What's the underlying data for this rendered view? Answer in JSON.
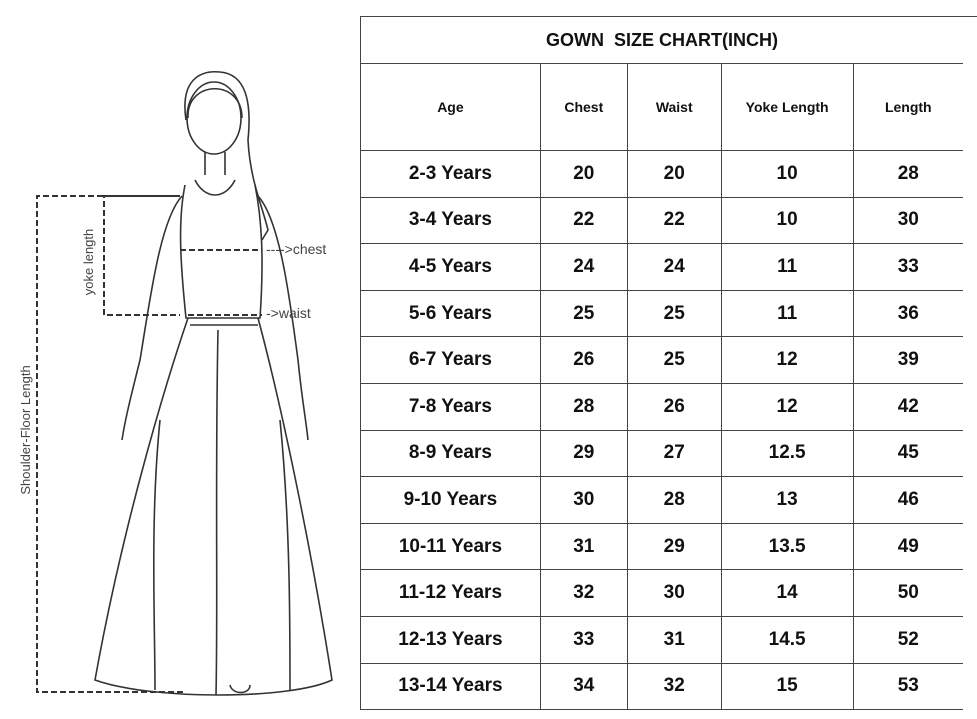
{
  "illustration": {
    "labels": {
      "chest": "---->chest",
      "waist": "->waist",
      "yoke": "yoke length",
      "shoulder_floor": "Shoulder-Floor Length"
    }
  },
  "table": {
    "title": "GOWN  SIZE CHART(INCH)",
    "header": [
      "Age",
      "Chest",
      "Waist",
      "Yoke Length",
      "Length"
    ],
    "rows": [
      [
        "2-3 Years",
        20,
        20,
        10,
        28
      ],
      [
        "3-4 Years",
        22,
        22,
        10,
        30
      ],
      [
        "4-5 Years",
        24,
        24,
        11,
        33
      ],
      [
        "5-6 Years",
        25,
        25,
        11,
        36
      ],
      [
        "6-7 Years",
        26,
        25,
        12,
        39
      ],
      [
        "7-8 Years",
        28,
        26,
        12,
        42
      ],
      [
        "8-9 Years",
        29,
        27,
        12.5,
        45
      ],
      [
        "9-10 Years",
        30,
        28,
        13,
        46
      ],
      [
        "10-11 Years",
        31,
        29,
        13.5,
        49
      ],
      [
        "11-12 Years",
        32,
        30,
        14,
        50
      ],
      [
        "12-13 Years",
        33,
        31,
        14.5,
        52
      ],
      [
        "13-14 Years",
        34,
        32,
        15,
        53
      ]
    ]
  }
}
